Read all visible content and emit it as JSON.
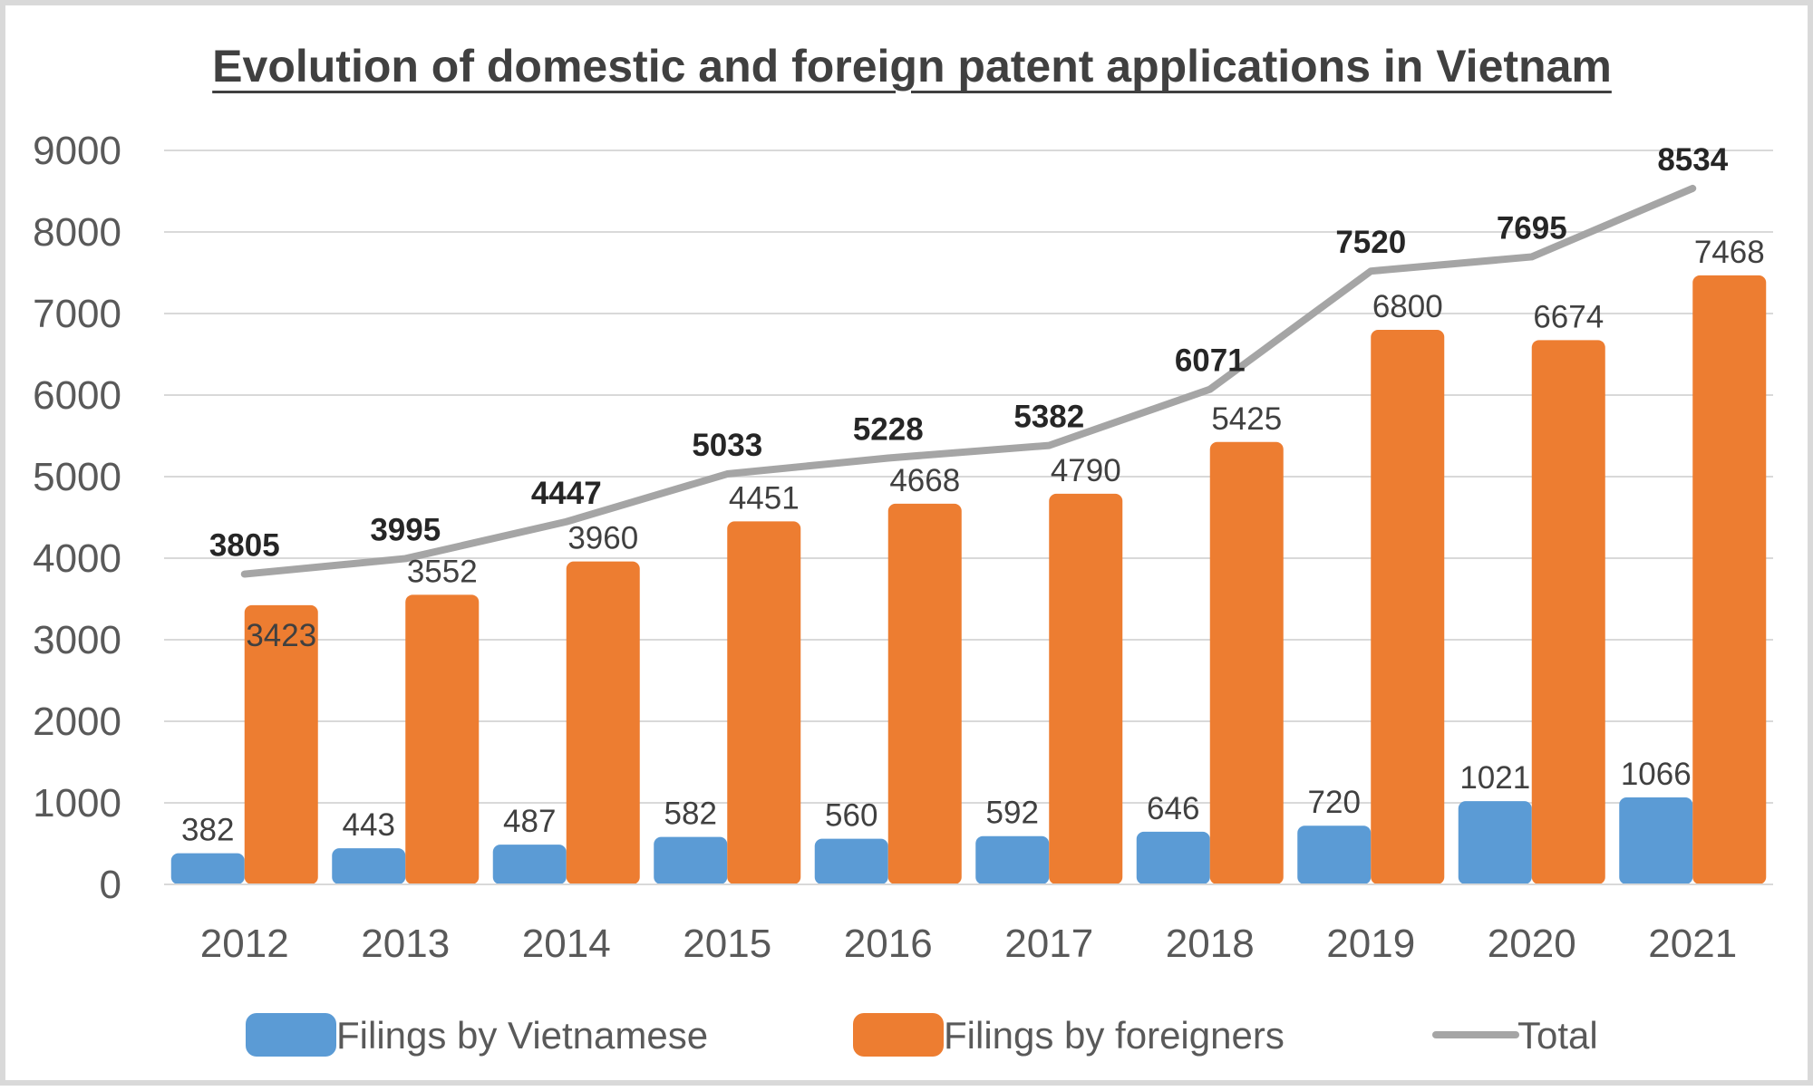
{
  "chart_data": {
    "type": "bar",
    "title": "Evolution of domestic and foreign patent applications in Vietnam",
    "categories": [
      "2012",
      "2013",
      "2014",
      "2015",
      "2016",
      "2017",
      "2018",
      "2019",
      "2020",
      "2021"
    ],
    "series": [
      {
        "name": "Filings by Vietnamese",
        "type": "bar",
        "color": "#5B9BD5",
        "values": [
          382,
          443,
          487,
          582,
          560,
          592,
          646,
          720,
          1021,
          1066
        ]
      },
      {
        "name": "Filings by foreigners",
        "type": "bar",
        "color": "#ED7D31",
        "values": [
          3423,
          3552,
          3960,
          4451,
          4668,
          4790,
          5425,
          6800,
          6674,
          7468
        ]
      },
      {
        "name": "Total",
        "type": "line",
        "color": "#A5A5A5",
        "values": [
          3805,
          3995,
          4447,
          5033,
          5228,
          5382,
          6071,
          7520,
          7695,
          8534
        ]
      }
    ],
    "ylim": [
      0,
      9000
    ],
    "yticks": [
      0,
      1000,
      2000,
      3000,
      4000,
      5000,
      6000,
      7000,
      8000,
      9000
    ],
    "xlabel": "",
    "ylabel": "",
    "grid": true,
    "legend_position": "bottom"
  }
}
